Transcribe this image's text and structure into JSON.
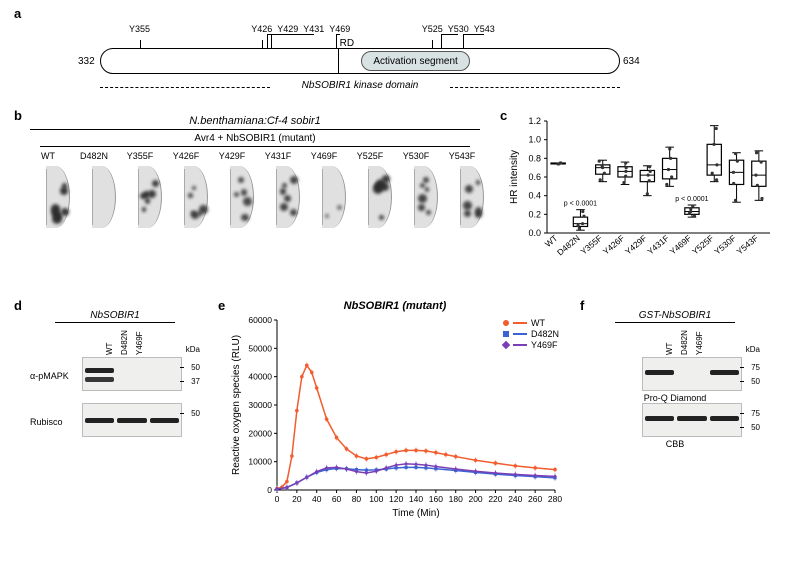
{
  "panelLabels": {
    "a": "a",
    "b": "b",
    "c": "c",
    "d": "d",
    "e": "e",
    "f": "f"
  },
  "panelA": {
    "domainName": "NbSOBIR1 kinase domain",
    "nTerm": "332",
    "cTerm": "634",
    "rdLabel": "RD",
    "rdPct": 45.5,
    "activationLabel": "Activation segment",
    "activationStartPct": 50,
    "activationEndPct": 71,
    "tyrosines": [
      {
        "label": "Y355",
        "pct": 7.6
      },
      {
        "label": "Y426",
        "pct": 31.1
      },
      {
        "label": "Y429",
        "pct": 32.1
      },
      {
        "label": "Y431",
        "pct": 32.8
      },
      {
        "label": "Y469",
        "pct": 45.4
      },
      {
        "label": "Y525",
        "pct": 63.9
      },
      {
        "label": "Y530",
        "pct": 65.6
      },
      {
        "label": "Y543",
        "pct": 69.9
      }
    ]
  },
  "panelB": {
    "title": "N.benthamiana:Cf-4 sobir1",
    "subtitle": "Avr4 + NbSOBIR1 (mutant)",
    "columns": [
      "WT",
      "D482N",
      "Y355F",
      "Y426F",
      "Y429F",
      "Y431F",
      "Y469F",
      "Y525F",
      "Y530F",
      "Y543F"
    ],
    "lesionStrength": [
      0.85,
      0.05,
      0.8,
      0.7,
      0.65,
      0.72,
      0.25,
      0.78,
      0.72,
      0.7
    ]
  },
  "panelC": {
    "ylabel": "HR intensity",
    "ymin": 0.0,
    "ymax": 1.2,
    "ytick": 0.2,
    "categories": [
      "WT",
      "D482N",
      "Y355F",
      "Y426F",
      "Y429F",
      "Y431F",
      "Y469F",
      "Y525F",
      "Y530F",
      "Y543F"
    ],
    "boxes": [
      {
        "min": 0.74,
        "q1": 0.74,
        "med": 0.74,
        "q3": 0.75,
        "max": 0.75,
        "pts": [
          0.74,
          0.74,
          0.75,
          0.75
        ]
      },
      {
        "min": 0.03,
        "q1": 0.07,
        "med": 0.1,
        "q3": 0.17,
        "max": 0.25,
        "pts": [
          0.05,
          0.08,
          0.1,
          0.18,
          0.23
        ],
        "pval": "p < 0.0001"
      },
      {
        "min": 0.55,
        "q1": 0.63,
        "med": 0.7,
        "q3": 0.73,
        "max": 0.78,
        "pts": [
          0.57,
          0.64,
          0.7,
          0.72,
          0.77
        ]
      },
      {
        "min": 0.52,
        "q1": 0.6,
        "med": 0.66,
        "q3": 0.71,
        "max": 0.76,
        "pts": [
          0.54,
          0.61,
          0.66,
          0.7,
          0.75
        ]
      },
      {
        "min": 0.4,
        "q1": 0.55,
        "med": 0.62,
        "q3": 0.67,
        "max": 0.72,
        "pts": [
          0.42,
          0.56,
          0.62,
          0.66,
          0.71
        ]
      },
      {
        "min": 0.5,
        "q1": 0.58,
        "med": 0.68,
        "q3": 0.8,
        "max": 0.92,
        "pts": [
          0.52,
          0.6,
          0.68,
          0.8,
          0.9
        ]
      },
      {
        "min": 0.17,
        "q1": 0.2,
        "med": 0.23,
        "q3": 0.27,
        "max": 0.3,
        "pts": [
          0.18,
          0.21,
          0.23,
          0.26,
          0.29
        ],
        "pval": "p < 0.0001"
      },
      {
        "min": 0.55,
        "q1": 0.62,
        "med": 0.73,
        "q3": 0.95,
        "max": 1.15,
        "pts": [
          0.57,
          0.64,
          0.73,
          0.95,
          1.12
        ]
      },
      {
        "min": 0.33,
        "q1": 0.52,
        "med": 0.65,
        "q3": 0.78,
        "max": 0.86,
        "pts": [
          0.35,
          0.53,
          0.65,
          0.77,
          0.85
        ]
      },
      {
        "min": 0.35,
        "q1": 0.5,
        "med": 0.62,
        "q3": 0.77,
        "max": 0.88,
        "pts": [
          0.37,
          0.51,
          0.62,
          0.76,
          0.86
        ]
      }
    ]
  },
  "panelD": {
    "header": "NbSOBIR1",
    "lanes": [
      "WT",
      "D482N",
      "Y469F"
    ],
    "rows": [
      {
        "label": "α-pMAPK",
        "markers": [
          "50",
          "37"
        ],
        "bands": [
          [
            {
              "lane": 0,
              "y": 0.3,
              "w": 0.9,
              "int": 1.0
            },
            {
              "lane": 0,
              "y": 0.6,
              "w": 0.9,
              "int": 0.9
            }
          ]
        ]
      },
      {
        "label": "Rubisco",
        "markers": [
          "50"
        ],
        "bands": [
          [
            {
              "lane": 0,
              "y": 0.45,
              "w": 0.9,
              "int": 1.0
            },
            {
              "lane": 1,
              "y": 0.45,
              "w": 0.9,
              "int": 1.0
            },
            {
              "lane": 2,
              "y": 0.45,
              "w": 0.9,
              "int": 1.0
            }
          ]
        ]
      }
    ],
    "kDaLabel": "kDa"
  },
  "panelE": {
    "title": "NbSOBIR1 (mutant)",
    "ylabel": "Reactive oxygen species (RLU)",
    "xlabel": "Time (Min)",
    "xlim": [
      0,
      280
    ],
    "xtick": 20,
    "ylim": [
      0,
      60000
    ],
    "ytick": 10000,
    "series": [
      {
        "name": "WT",
        "color": "#f25c2e",
        "marker": "circle",
        "points": [
          [
            0,
            500
          ],
          [
            5,
            1000
          ],
          [
            10,
            3000
          ],
          [
            15,
            12000
          ],
          [
            20,
            28000
          ],
          [
            25,
            40000
          ],
          [
            30,
            44000
          ],
          [
            35,
            41500
          ],
          [
            40,
            36000
          ],
          [
            50,
            25000
          ],
          [
            60,
            18500
          ],
          [
            70,
            14500
          ],
          [
            80,
            12000
          ],
          [
            90,
            11000
          ],
          [
            100,
            11500
          ],
          [
            110,
            12500
          ],
          [
            120,
            13500
          ],
          [
            130,
            14000
          ],
          [
            140,
            14000
          ],
          [
            150,
            13800
          ],
          [
            160,
            13200
          ],
          [
            170,
            12500
          ],
          [
            180,
            11800
          ],
          [
            200,
            10500
          ],
          [
            220,
            9500
          ],
          [
            240,
            8500
          ],
          [
            260,
            7800
          ],
          [
            280,
            7200
          ]
        ]
      },
      {
        "name": "D482N",
        "color": "#3a63d6",
        "marker": "square",
        "points": [
          [
            0,
            300
          ],
          [
            10,
            900
          ],
          [
            20,
            2500
          ],
          [
            30,
            4500
          ],
          [
            40,
            6200
          ],
          [
            50,
            7200
          ],
          [
            60,
            7600
          ],
          [
            70,
            7500
          ],
          [
            80,
            7200
          ],
          [
            90,
            7000
          ],
          [
            100,
            7100
          ],
          [
            110,
            7400
          ],
          [
            120,
            7800
          ],
          [
            130,
            8000
          ],
          [
            140,
            8000
          ],
          [
            150,
            7800
          ],
          [
            160,
            7500
          ],
          [
            180,
            6900
          ],
          [
            200,
            6200
          ],
          [
            220,
            5600
          ],
          [
            240,
            5100
          ],
          [
            260,
            4700
          ],
          [
            280,
            4300
          ]
        ]
      },
      {
        "name": "Y469F",
        "color": "#7a3fb5",
        "marker": "diamond",
        "points": [
          [
            0,
            300
          ],
          [
            10,
            900
          ],
          [
            20,
            2500
          ],
          [
            30,
            4500
          ],
          [
            40,
            6500
          ],
          [
            50,
            7800
          ],
          [
            60,
            8000
          ],
          [
            70,
            7400
          ],
          [
            80,
            6500
          ],
          [
            90,
            6000
          ],
          [
            100,
            6600
          ],
          [
            110,
            7800
          ],
          [
            120,
            8800
          ],
          [
            130,
            9200
          ],
          [
            140,
            9100
          ],
          [
            150,
            8800
          ],
          [
            160,
            8300
          ],
          [
            180,
            7400
          ],
          [
            200,
            6600
          ],
          [
            220,
            6000
          ],
          [
            240,
            5500
          ],
          [
            260,
            5100
          ],
          [
            280,
            4800
          ]
        ]
      }
    ]
  },
  "panelF": {
    "header": "GST-NbSOBIR1",
    "lanes": [
      "WT",
      "D482N",
      "Y469F"
    ],
    "rows": [
      {
        "label": "Pro-Q Diamond",
        "markers": [
          "75",
          "50"
        ],
        "bands": [
          [
            {
              "lane": 0,
              "y": 0.38,
              "w": 0.9,
              "int": 1.0
            },
            {
              "lane": 2,
              "y": 0.38,
              "w": 0.9,
              "int": 1.0
            }
          ]
        ]
      },
      {
        "label": "CBB",
        "markers": [
          "75",
          "50"
        ],
        "bands": [
          [
            {
              "lane": 0,
              "y": 0.38,
              "w": 0.9,
              "int": 1.0
            },
            {
              "lane": 1,
              "y": 0.38,
              "w": 0.9,
              "int": 1.0
            },
            {
              "lane": 2,
              "y": 0.38,
              "w": 0.9,
              "int": 1.0
            }
          ]
        ]
      }
    ],
    "kDaLabel": "kDa"
  }
}
